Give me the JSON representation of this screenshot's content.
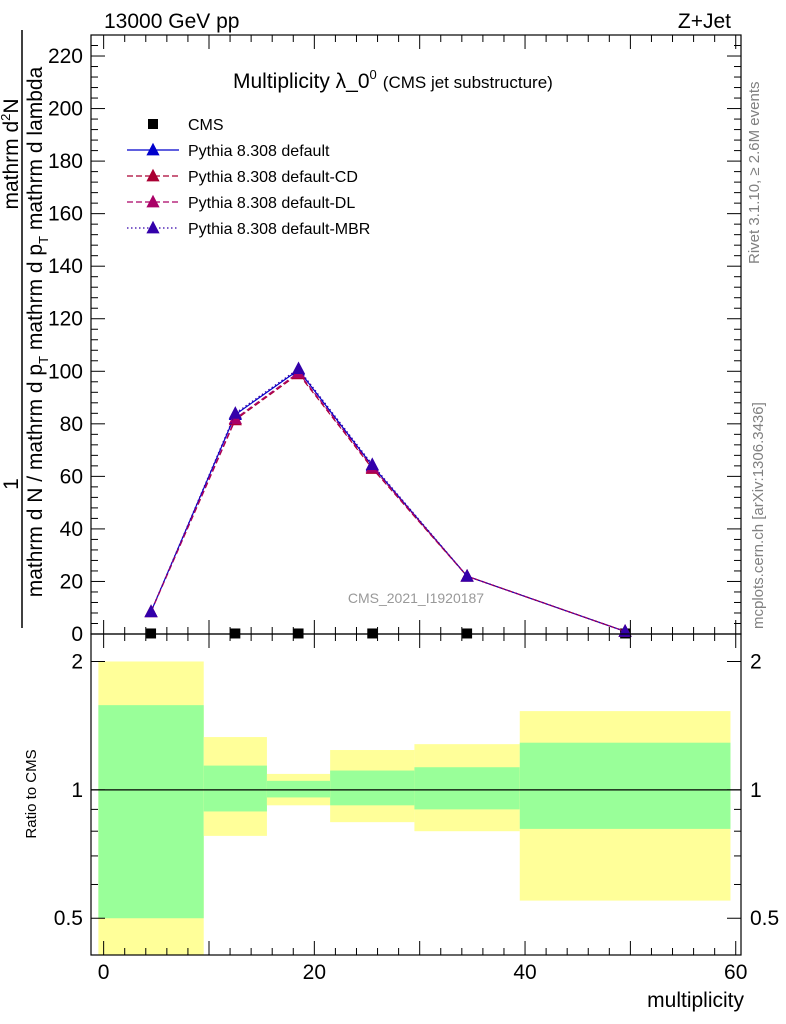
{
  "header": {
    "left": "13000 GeV pp",
    "right": "Z+Jet"
  },
  "side_labels": {
    "rivet": "Rivet 3.1.10, ≥ 2.6M events",
    "mcplots": "mcplots.cern.ch [arXiv:1306.3436]"
  },
  "colors": {
    "data": "#000000",
    "default": "#0000cc",
    "cd": "#aa0033",
    "dl": "#aa0066",
    "mbr": "#3300aa",
    "band_outer": "#ffff99",
    "band_inner": "#99ff99"
  },
  "chart_data": [
    {
      "type": "line",
      "title": "Multiplicity λ_0",
      "title_sup": "0",
      "subtitle": "(CMS jet substructure)",
      "watermark": "CMS_2021_I1920187",
      "ylabel_numerator_1": "1",
      "ylabel_numerator_2": "mathrm d",
      "ylabel_numerator_sup": "2",
      "ylabel_numerator_3": "N",
      "ylabel_denominator_1": "mathrm d N / mathrm d p",
      "ylabel_denominator_sub1": "T",
      "ylabel_denominator_2": " mathrm d p",
      "ylabel_denominator_sub2": "T",
      "ylabel_denominator_3": " mathrm d lambda",
      "xlim": [
        -1.2,
        60.5
      ],
      "ylim": [
        0,
        228
      ],
      "y_major_ticks": [
        0,
        20,
        40,
        60,
        80,
        100,
        120,
        140,
        160,
        180,
        200,
        220
      ],
      "y_tick_labels": [
        "0",
        "20",
        "40",
        "60",
        "80",
        "100",
        "120",
        "140",
        "160",
        "180",
        "200",
        "220"
      ],
      "legend_position": "top-left",
      "series": [
        {
          "name": "CMS",
          "key": "data",
          "marker": "square",
          "x": [
            4.5,
            12.5,
            18.5,
            25.5,
            34.5,
            49.5
          ],
          "y": [
            0.2,
            0.2,
            0.2,
            0.2,
            0.2,
            0.2
          ]
        },
        {
          "name": "Pythia 8.308 default",
          "key": "default",
          "style": "solid",
          "x": [
            4.5,
            12.5,
            18.5,
            25.5,
            34.5,
            49.5
          ],
          "y": [
            8.5,
            83.5,
            100.5,
            64.0,
            22.0,
            1.0
          ]
        },
        {
          "name": "Pythia 8.308 default-CD",
          "key": "cd",
          "style": "dashed",
          "x": [
            4.5,
            12.5,
            18.5,
            25.5,
            34.5,
            49.5
          ],
          "y": [
            8.5,
            81.5,
            99.0,
            63.0,
            22.0,
            1.0
          ]
        },
        {
          "name": "Pythia 8.308 default-DL",
          "key": "dl",
          "style": "dashed",
          "x": [
            4.5,
            12.5,
            18.5,
            25.5,
            34.5,
            49.5
          ],
          "y": [
            8.5,
            82.0,
            99.5,
            63.5,
            22.0,
            1.0
          ]
        },
        {
          "name": "Pythia 8.308 default-MBR",
          "key": "mbr",
          "style": "dotted",
          "x": [
            4.5,
            12.5,
            18.5,
            25.5,
            34.5,
            49.5
          ],
          "y": [
            8.5,
            84.0,
            101.0,
            64.5,
            22.0,
            1.0
          ]
        }
      ]
    },
    {
      "type": "area",
      "title": "",
      "xlabel": "multiplicity",
      "ylabel": "Ratio to CMS",
      "xlim": [
        -1.2,
        60.5
      ],
      "ylim": [
        0.41,
        2.32
      ],
      "log_y": true,
      "x_major_ticks": [
        0,
        20,
        40,
        60
      ],
      "x_tick_labels": [
        "0",
        "20",
        "40",
        "60"
      ],
      "y_major_ticks": [
        0.5,
        1,
        2
      ],
      "y_tick_labels": [
        "0.5",
        "1",
        "2"
      ],
      "reference_line": 1,
      "bands": [
        {
          "x0": -0.5,
          "x1": 9.5,
          "outer": [
            0.35,
            2.0
          ],
          "inner": [
            0.5,
            1.58
          ]
        },
        {
          "x0": 9.5,
          "x1": 15.5,
          "outer": [
            0.78,
            1.33
          ],
          "inner": [
            0.89,
            1.14
          ]
        },
        {
          "x0": 15.5,
          "x1": 21.5,
          "outer": [
            0.92,
            1.09
          ],
          "inner": [
            0.96,
            1.05
          ]
        },
        {
          "x0": 21.5,
          "x1": 29.5,
          "outer": [
            0.84,
            1.24
          ],
          "inner": [
            0.92,
            1.11
          ]
        },
        {
          "x0": 29.5,
          "x1": 39.5,
          "outer": [
            0.8,
            1.28
          ],
          "inner": [
            0.9,
            1.13
          ]
        },
        {
          "x0": 39.5,
          "x1": 59.5,
          "outer": [
            0.55,
            1.53
          ],
          "inner": [
            0.81,
            1.29
          ]
        }
      ]
    }
  ]
}
